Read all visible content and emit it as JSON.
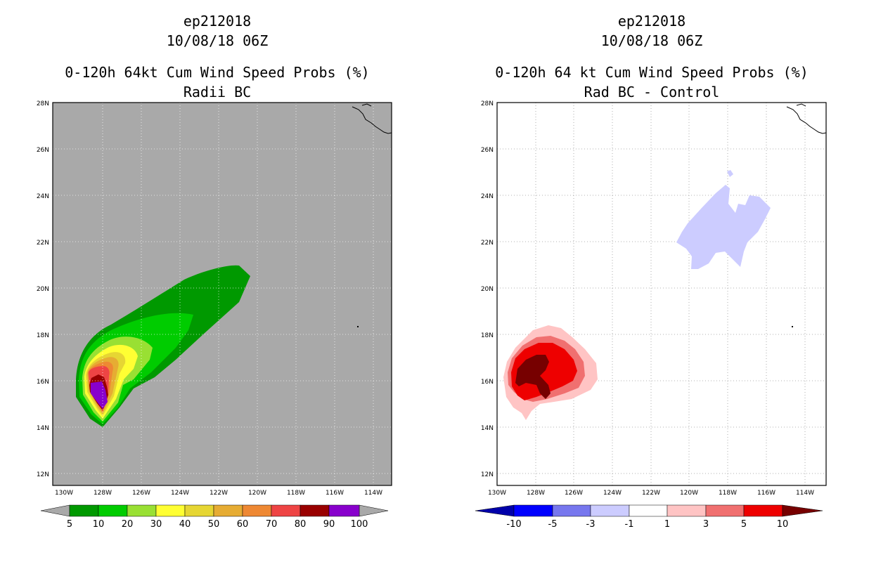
{
  "panels": [
    {
      "storm_id": "ep212018",
      "datetime": "10/08/18 06Z",
      "product": "0-120h 64kt Cum Wind Speed Probs (%)",
      "subtitle": "Radii BC",
      "lat_labels": [
        "28N",
        "26N",
        "24N",
        "22N",
        "20N",
        "18N",
        "16N",
        "14N",
        "12N"
      ],
      "lon_labels": [
        "130W",
        "128W",
        "126W",
        "124W",
        "122W",
        "120W",
        "118W",
        "116W",
        "114W"
      ],
      "colorbar": {
        "labels": [
          "5",
          "10",
          "20",
          "30",
          "40",
          "50",
          "60",
          "70",
          "80",
          "90",
          "100"
        ],
        "colors": [
          "#009900",
          "#00cc00",
          "#99e033",
          "#ffff33",
          "#e6d633",
          "#e6ac33",
          "#ee8833",
          "#ee4444",
          "#990000",
          "#8800cc"
        ]
      }
    },
    {
      "storm_id": "ep212018",
      "datetime": "10/08/18 06Z",
      "product": "0-120h 64 kt Cum Wind Speed Probs (%)",
      "subtitle": "Rad BC - Control",
      "lat_labels": [
        "28N",
        "26N",
        "24N",
        "22N",
        "20N",
        "18N",
        "16N",
        "14N",
        "12N"
      ],
      "lon_labels": [
        "130W",
        "128W",
        "126W",
        "124W",
        "122W",
        "120W",
        "118W",
        "116W",
        "114W"
      ],
      "colorbar": {
        "labels": [
          "-10",
          "-5",
          "-3",
          "-1",
          "1",
          "3",
          "5",
          "10"
        ],
        "colors": [
          "#0000aa",
          "#0000ff",
          "#7777ee",
          "#ccccff",
          "#ffffff",
          "#ffc4c4",
          "#f07070",
          "#ee0000",
          "#770000"
        ]
      }
    }
  ]
}
